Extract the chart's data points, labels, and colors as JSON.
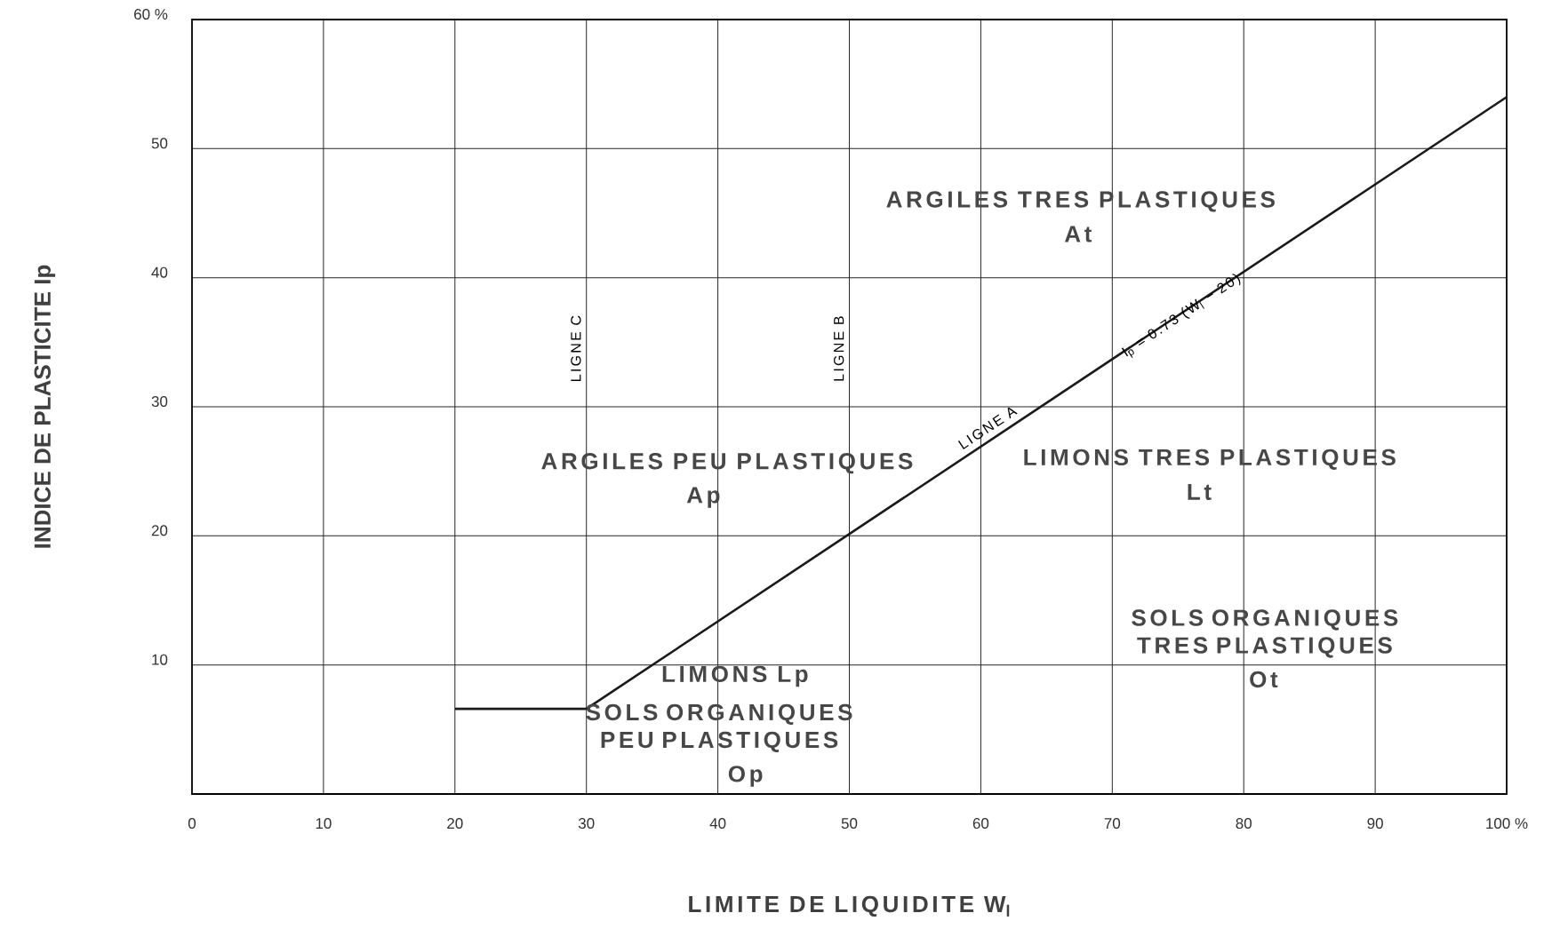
{
  "chart_data": {
    "type": "line",
    "xlabel": "LIMITE DE LIQUIDITE    W$_{l}$",
    "ylabel": "INDICE DE PLASTICITE    Ip",
    "series": [
      {
        "color": "#1a1a1a",
        "x": [
          20,
          30,
          100
        ],
        "values": [
          6.6,
          6.6,
          54
        ]
      }
    ],
    "xlim": [
      0,
      100
    ],
    "ylim": [
      0,
      60
    ],
    "xticks": [
      0,
      10,
      20,
      30,
      40,
      50,
      60,
      70,
      80,
      90,
      {
        "value": 100,
        "label": "100 %"
      }
    ],
    "yticks": [
      10,
      20,
      30,
      40,
      50,
      {
        "value": 60,
        "label": "60 %"
      }
    ],
    "grid": true,
    "marker": "none",
    "line_style": "solid",
    "annotations": [
      "ARGILES TRES PLASTIQUES",
      "At",
      "ARGILES PEU PLASTIQUES",
      "Ap",
      "LIMONS TRES PLASTIQUES",
      "Lt",
      "SOLS ORGANIQUES TRES PLASTIQUES",
      "Ot",
      "LIMONS    Lp",
      "SOLS ORGANIQUES PEU PLASTIQUES",
      "Op",
      "LIGNE  A",
      "I$_{p}$ = 0.73 (W$_{l}$ − 20)",
      "LIGNE  C",
      "LIGNE  B"
    ]
  }
}
